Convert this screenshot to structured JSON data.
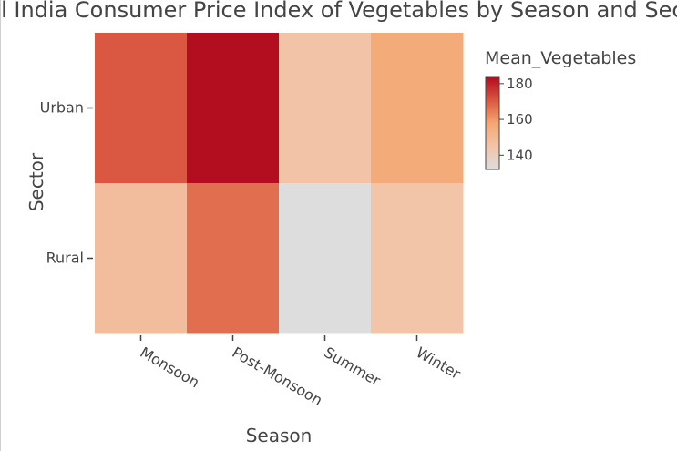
{
  "chart_data": {
    "type": "heatmap",
    "title": "All India Consumer Price Index of Vegetables by Season and Sector",
    "xlabel": "Season",
    "ylabel": "Sector",
    "x": [
      "Monsoon",
      "Post-Monsoon",
      "Summer",
      "Winter"
    ],
    "y": [
      "Urban",
      "Rural"
    ],
    "z": [
      [
        170.5,
        183.5,
        145.5,
        156.0
      ],
      [
        148.0,
        167.0,
        132.0,
        145.0
      ]
    ],
    "colorbar": {
      "title": "Mean_Vegetables",
      "range": [
        132,
        184
      ],
      "ticks": [
        140,
        160,
        180
      ],
      "colorscale": [
        [
          0.0,
          "#dddddd"
        ],
        [
          0.25,
          "#f2c4a8"
        ],
        [
          0.5,
          "#f4a672"
        ],
        [
          0.75,
          "#d9553f"
        ],
        [
          1.0,
          "#b10a1f"
        ]
      ]
    }
  }
}
